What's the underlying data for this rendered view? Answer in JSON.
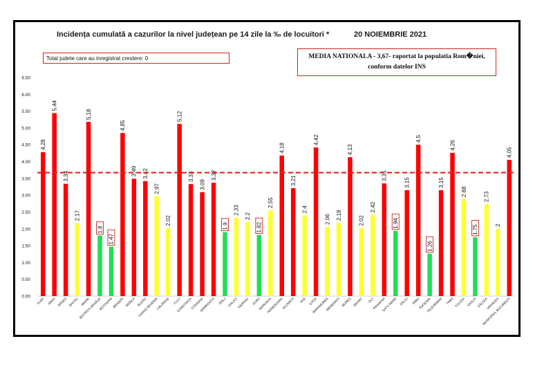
{
  "header": {
    "title": "Incidența cumulată a cazurilor la nivel județean pe 14 zile la ‰ de locuitori *",
    "date": "20 NOIEMBRIE 2021",
    "increase_note": "Total judete care au inregistrat crestere: 0",
    "national_line1": "MEDIA NATIONALA - 3,67-  raportat la populatia Rom�niei,",
    "national_line2": "conform datelor INS"
  },
  "chart_data": {
    "type": "bar",
    "ylim": [
      0,
      6.5
    ],
    "yticks": [
      "0.00",
      "0.50",
      "1.00",
      "1.50",
      "2.00",
      "2.50",
      "3.00",
      "3.50",
      "4.00",
      "4.50",
      "5.00",
      "5.50",
      "6.00",
      "6.50"
    ],
    "reference_line": 3.67,
    "colors": {
      "red": "#ff0000",
      "yellow": "#ffff33",
      "green": "#22dd55",
      "ref_line": "#e02020",
      "box": "#d02020"
    },
    "categories": [
      "ALBA",
      "ARAD",
      "ARGEȘ",
      "BACĂU",
      "BIHOR",
      "BISTRIȚA-NĂSĂUD",
      "BOTOȘANI",
      "BRAȘOV",
      "BRĂILA",
      "BUZĂU",
      "CARAȘ-SEVERIN",
      "CĂLĂRAȘI",
      "CLUJ",
      "CONSTANȚA",
      "COVASNA",
      "DÂMBOVIȚA",
      "DOLJ",
      "GALAȚI",
      "GIURGIU",
      "GORJ",
      "HARGHITA",
      "HUNEDOARA",
      "IALOMIȚA",
      "IAȘI",
      "ILFOV",
      "MARAMUREȘ",
      "MEHEDINȚI",
      "MUREȘ",
      "NEAMȚ",
      "OLT",
      "PRAHOVA",
      "SATU MARE",
      "SĂLAJ",
      "SIBIU",
      "SUCEAVA",
      "TELEORMAN",
      "TIMIȘ",
      "TULCEA",
      "VASLUI",
      "VÂLCEA",
      "VRANCEA",
      "MUNICIPIUL BUCUREȘTI"
    ],
    "values": [
      4.28,
      5.44,
      3.34,
      2.17,
      5.18,
      1.8,
      1.47,
      4.85,
      3.49,
      3.42,
      2.97,
      2.02,
      5.12,
      3.33,
      3.09,
      3.37,
      1.9,
      2.33,
      2.2,
      1.82,
      2.55,
      4.18,
      3.21,
      2.4,
      4.42,
      2.06,
      2.18,
      4.13,
      2.02,
      2.42,
      3.35,
      1.94,
      3.15,
      4.5,
      1.26,
      3.15,
      4.26,
      2.88,
      1.75,
      2.73,
      2,
      4.05
    ],
    "labels": [
      "4,28",
      "5,44",
      "3,34",
      "2.17",
      "5,18",
      "1.8",
      "1.47",
      "4,85",
      "3,49",
      "3,42",
      "2.97",
      "2.02",
      "5,12",
      "3,33",
      "3,09",
      "3,37",
      "1.9",
      "2.33",
      "2.2",
      "1.82",
      "2.55",
      "4,18",
      "3,21",
      "2.4",
      "4,42",
      "2.06",
      "2.18",
      "4,13",
      "2.02",
      "2.42",
      "3,35",
      "1.94",
      "3,15",
      "4,5",
      "1.26",
      "3,15",
      "4,26",
      "2.88",
      "1.75",
      "2.73",
      "2",
      "4,05"
    ],
    "bar_colors": [
      "red",
      "red",
      "red",
      "yellow",
      "red",
      "green",
      "green",
      "red",
      "red",
      "red",
      "yellow",
      "yellow",
      "red",
      "red",
      "red",
      "red",
      "green",
      "yellow",
      "yellow",
      "green",
      "yellow",
      "red",
      "red",
      "yellow",
      "red",
      "yellow",
      "yellow",
      "red",
      "yellow",
      "yellow",
      "red",
      "green",
      "red",
      "red",
      "green",
      "red",
      "red",
      "yellow",
      "green",
      "yellow",
      "yellow",
      "red"
    ],
    "boxed": [
      false,
      false,
      false,
      false,
      false,
      true,
      true,
      false,
      false,
      false,
      false,
      false,
      false,
      false,
      false,
      false,
      true,
      false,
      false,
      true,
      false,
      false,
      false,
      false,
      false,
      false,
      false,
      false,
      false,
      false,
      false,
      true,
      false,
      false,
      true,
      false,
      false,
      false,
      true,
      false,
      false,
      false
    ]
  }
}
